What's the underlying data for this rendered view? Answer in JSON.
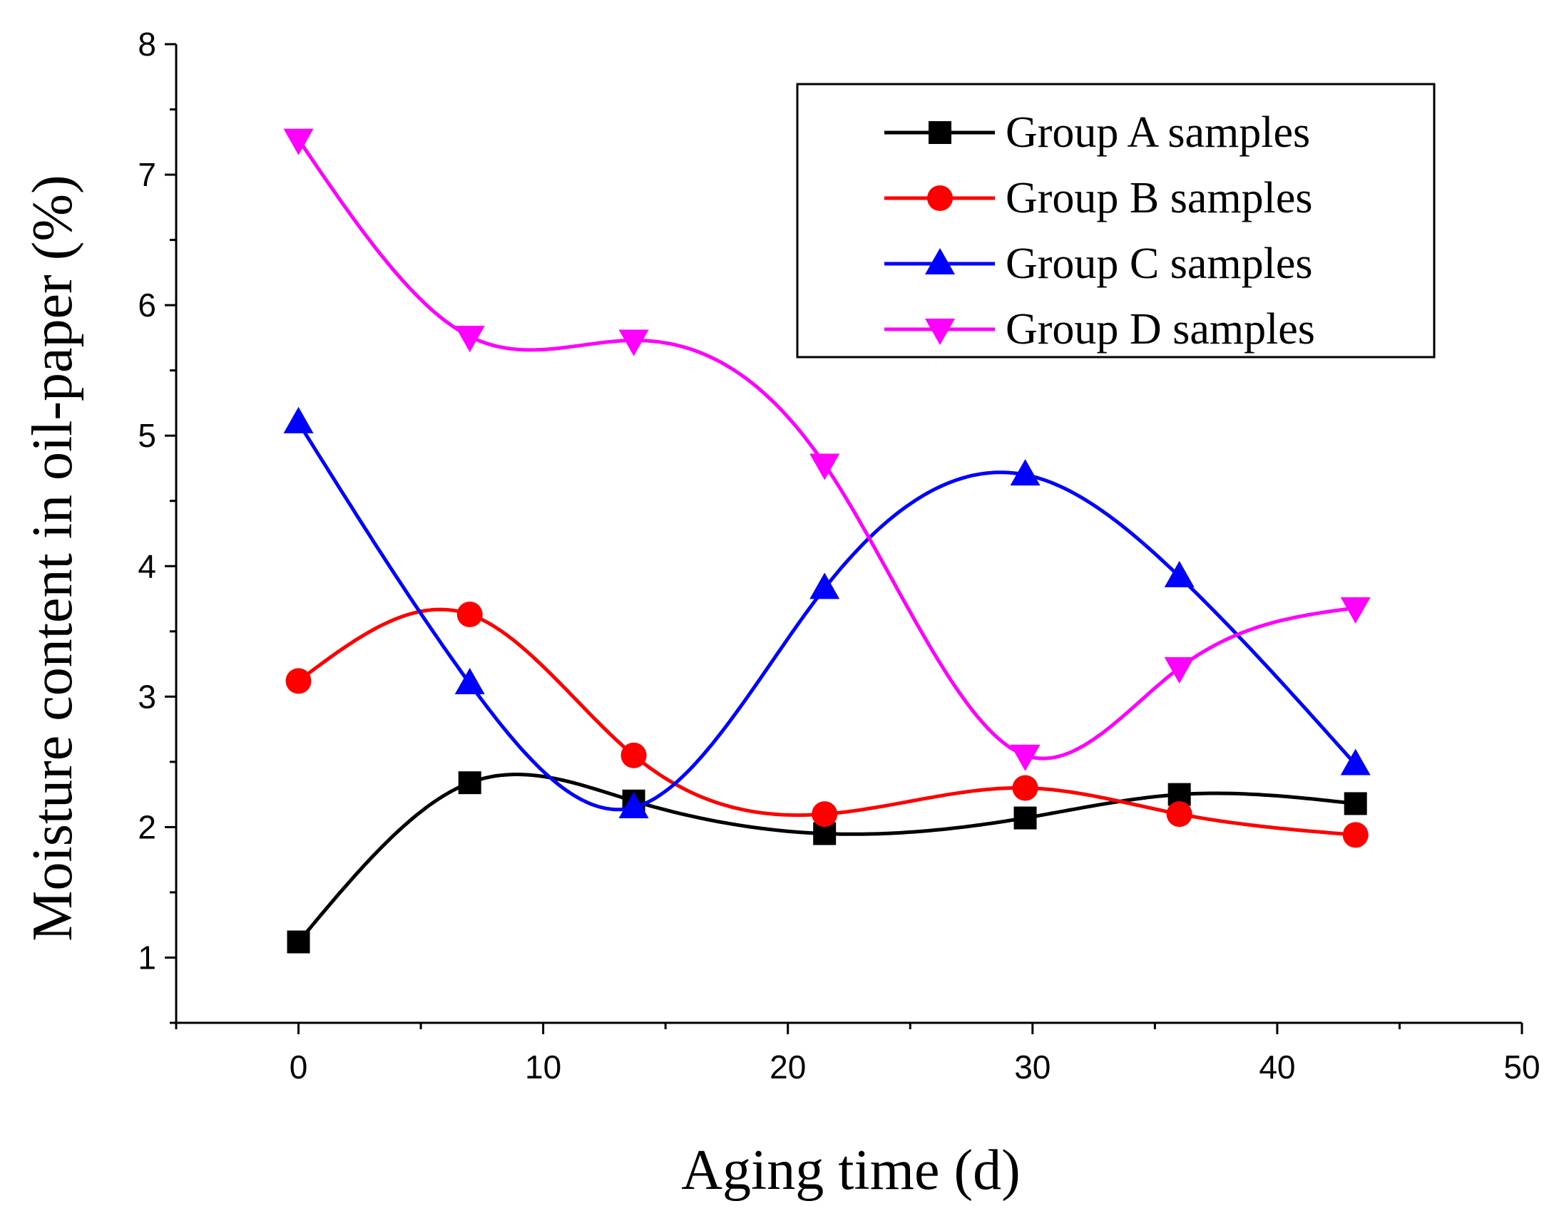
{
  "chart_data": {
    "type": "line",
    "title": "",
    "xlabel": "Aging time (d)",
    "ylabel": "Moisture content in oil-paper (%)",
    "xlim": [
      -5,
      50
    ],
    "ylim": [
      0.5,
      8
    ],
    "x_ticks": [
      0,
      10,
      20,
      30,
      40,
      50
    ],
    "y_ticks": [
      1,
      2,
      3,
      4,
      5,
      6,
      7,
      8
    ],
    "x": [
      0,
      7,
      13.7,
      21.5,
      29.7,
      36,
      43.2
    ],
    "legend_position": "top-right",
    "smooth": true,
    "series": [
      {
        "name": "Group A samples",
        "marker": "square",
        "color": "#000000",
        "values": [
          1.12,
          2.34,
          2.2,
          1.95,
          2.07,
          2.25,
          2.18
        ]
      },
      {
        "name": "Group B samples",
        "marker": "circle",
        "color": "#ff0000",
        "values": [
          3.12,
          3.63,
          2.55,
          2.1,
          2.3,
          2.1,
          1.94
        ]
      },
      {
        "name": "Group C samples",
        "marker": "triangle-up",
        "color": "#0000ff",
        "values": [
          5.1,
          3.1,
          2.15,
          3.83,
          4.7,
          3.92,
          2.48
        ]
      },
      {
        "name": "Group D samples",
        "marker": "triangle-down",
        "color": "#ff00ff",
        "values": [
          7.27,
          5.76,
          5.73,
          4.78,
          2.55,
          3.22,
          3.68
        ]
      }
    ]
  }
}
